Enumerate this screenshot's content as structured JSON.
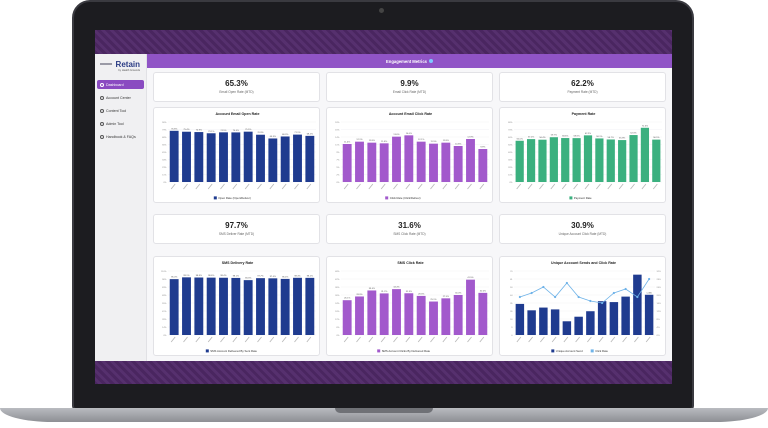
{
  "app": {
    "brand": "Retain",
    "brand_sub": "by Health Grounds"
  },
  "sidebar": {
    "items": [
      {
        "label": "Dashboard",
        "icon": "home-icon"
      },
      {
        "label": "Account Center",
        "icon": "users-icon"
      },
      {
        "label": "Content Tool",
        "icon": "content-icon"
      },
      {
        "label": "Admin Tool",
        "icon": "admin-icon"
      },
      {
        "label": "Handbook & FAQs",
        "icon": "book-icon"
      }
    ]
  },
  "header": {
    "title": "Engagement Metrics"
  },
  "kpis": [
    {
      "value": "65.3%",
      "label": "Email Open Rate (MTD)"
    },
    {
      "value": "9.9%",
      "label": "Email Click Rate (MTD)"
    },
    {
      "value": "62.2%",
      "label": "Payment Rate (MTD)"
    },
    {
      "value": "97.7%",
      "label": "SMS Deliver Rate (MTD)"
    },
    {
      "value": "31.6%",
      "label": "SMS Click Rate (MTD)"
    },
    {
      "value": "30.9%",
      "label": "Unique Account Click Rate (MTD)"
    }
  ],
  "colors": {
    "navy": "#1f3b8f",
    "purple": "#a259cc",
    "green": "#3bb07f",
    "blue": "#1f3b8f",
    "lightblue": "#6fb3e8"
  },
  "chart_data": [
    {
      "type": "bar",
      "title": "Account Email Open Rate",
      "legend": [
        "Open Rate (Open/Deliver)"
      ],
      "ylim": [
        0,
        90
      ],
      "values": [
        76.8,
        75.4,
        74.9,
        73.1,
        74.5,
        74.4,
        75.5,
        70.9,
        65.3,
        68.3,
        71.1,
        69.2
      ],
      "labels": [
        "76.8%",
        "75.4%",
        "74.9%",
        "73.1%",
        "74.5%",
        "74.4%",
        "75.5%",
        "70.9%",
        "65.3%",
        "68.3%",
        "71.1%",
        "69.2%"
      ],
      "color": "navy"
    },
    {
      "type": "bar",
      "title": "Account Email Click Rate",
      "legend": [
        "Click Rate (Click/Deliver)"
      ],
      "ylim": [
        0,
        18
      ],
      "values": [
        11.4,
        12.1,
        11.8,
        11.6,
        13.6,
        14.0,
        12.1,
        11.5,
        11.8,
        10.8,
        12.9,
        9.9
      ],
      "labels": [
        "11.4%",
        "12.1%",
        "11.8%",
        "11.6%",
        "13.6%",
        "14.0%",
        "12.1%",
        "11.5%",
        "11.8%",
        "10.8%",
        "12.9%",
        "9.9%"
      ],
      "color": "purple"
    },
    {
      "type": "bar",
      "title": "Payment Rate",
      "legend": [
        "Payment Rate"
      ],
      "ylim": [
        0,
        80
      ],
      "values": [
        55.0,
        57.2,
        56.4,
        59.7,
        58.6,
        58.5,
        62.2,
        58.1,
        56.7,
        55.9,
        62.6,
        72.3,
        56.5
      ],
      "labels": [
        "55.0%",
        "57.2%",
        "56.4%",
        "59.7%",
        "58.6%",
        "58.5%",
        "62.2%",
        "58.1%",
        "56.7%",
        "55.9%",
        "62.6%",
        "72.3%",
        "56.5%"
      ],
      "color": "green"
    },
    {
      "type": "bar",
      "title": "SMS Delivery Rate",
      "legend": [
        "SMS Account Delivered By Sent Rate"
      ],
      "ylim": [
        0,
        110
      ],
      "values": [
        96.0,
        99.1,
        98.8,
        98.6,
        98.4,
        98.1,
        94.3,
        97.7,
        97.4,
        96.4,
        98.3,
        98.2
      ],
      "labels": [
        "96.0%",
        "99.1%",
        "98.8%",
        "98.6%",
        "98.4%",
        "98.1%",
        "94.3%",
        "97.7%",
        "97.4%",
        "96.4%",
        "98.3%",
        "98.2%"
      ],
      "color": "navy"
    },
    {
      "type": "bar",
      "title": "SMS Click Rate",
      "legend": [
        "SMS Account Clicks By Delivered Rate"
      ],
      "ylim": [
        0,
        48
      ],
      "values": [
        26.1,
        28.9,
        33.4,
        31.2,
        34.4,
        31.3,
        29.3,
        25.1,
        27.5,
        30.0,
        41.5,
        31.6
      ],
      "labels": [
        "26.1%",
        "28.9%",
        "33.4%",
        "31.2%",
        "34.4%",
        "31.3%",
        "29.3%",
        "25.1%",
        "27.5%",
        "30.0%",
        "41.5%",
        "31.6%"
      ],
      "color": "purple"
    },
    {
      "type": "bar+line",
      "title": "Unique Account Sends and Click Rate",
      "legend": [
        "Unique Account Send",
        "Click Rate"
      ],
      "bars": [
        34,
        27,
        30,
        28,
        15,
        20,
        26,
        37,
        36,
        42,
        66,
        44
      ],
      "bar_labels": [
        "",
        "",
        "",
        "",
        "",
        "",
        "",
        "",
        "",
        "",
        "",
        "1,080"
      ],
      "line": [
        19,
        21,
        24,
        19,
        26,
        19,
        17,
        16,
        21,
        23,
        19,
        28
      ],
      "ylim": [
        0,
        70
      ],
      "y2lim": [
        0,
        32
      ],
      "color": "blue",
      "line_color": "lightblue"
    }
  ]
}
